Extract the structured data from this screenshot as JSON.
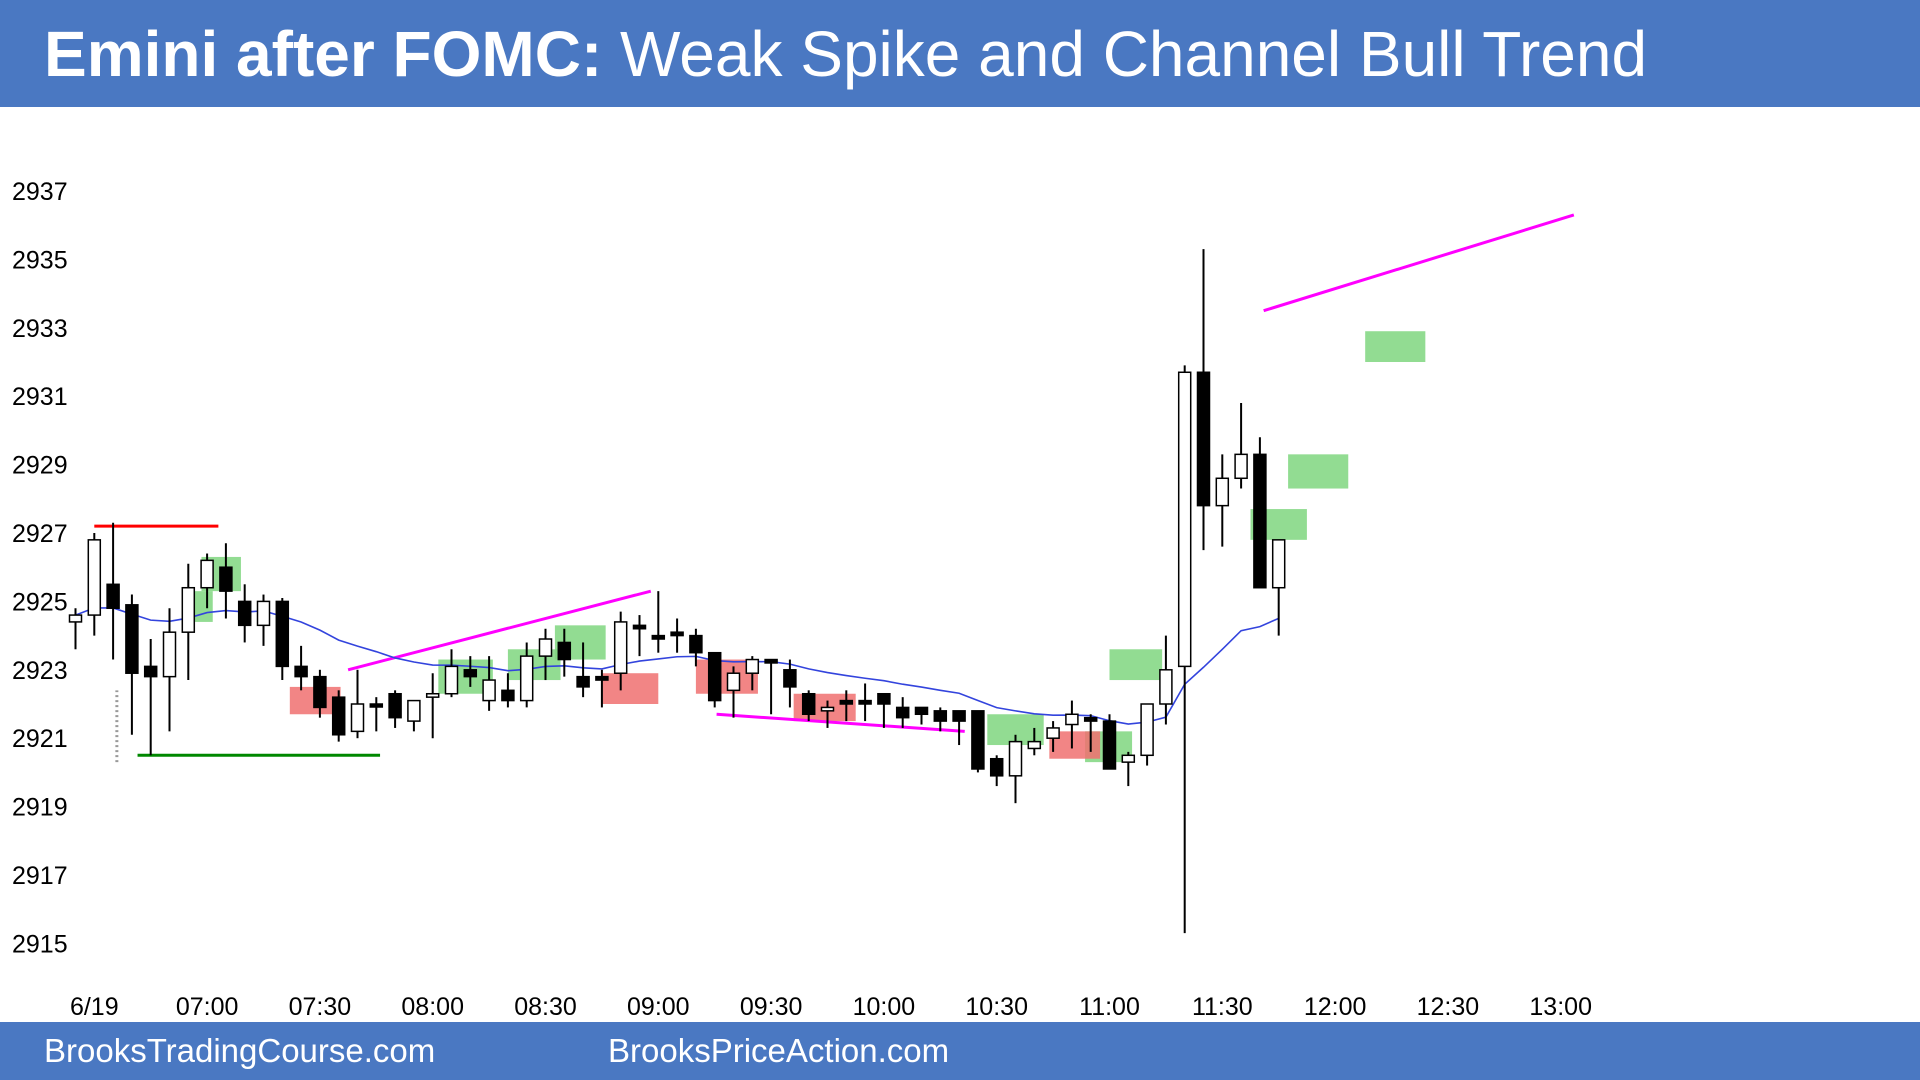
{
  "header": {
    "title_bold": "Emini after FOMC:",
    "title_rest": " Weak Spike and Channel Bull Trend"
  },
  "footer": {
    "left": "BrooksTradingCourse.com",
    "right": "BrooksPriceAction.com"
  },
  "colors": {
    "banner": "#4a78c2",
    "ema": "#3344dd",
    "trendline": "#ff00ff",
    "resistance": "#ff0000",
    "support": "#008800",
    "bull_box": "#7fd67f",
    "bear_box": "#f07070"
  },
  "chart_data": {
    "type": "candlestick",
    "title": "Emini after FOMC: Weak Spike and Channel Bull Trend",
    "ylim": [
      2914,
      2939
    ],
    "y_ticks": [
      2915,
      2917,
      2919,
      2921,
      2923,
      2925,
      2927,
      2929,
      2931,
      2933,
      2935,
      2937
    ],
    "x_ticks": [
      {
        "bar": 1,
        "label": "6/19"
      },
      {
        "bar": 7,
        "label": "07:00"
      },
      {
        "bar": 13,
        "label": "07:30"
      },
      {
        "bar": 19,
        "label": "08:00"
      },
      {
        "bar": 25,
        "label": "08:30"
      },
      {
        "bar": 31,
        "label": "09:00"
      },
      {
        "bar": 37,
        "label": "09:30"
      },
      {
        "bar": 43,
        "label": "10:00"
      },
      {
        "bar": 49,
        "label": "10:30"
      },
      {
        "bar": 55,
        "label": "11:00"
      },
      {
        "bar": 61,
        "label": "11:30"
      },
      {
        "bar": 67,
        "label": "12:00"
      },
      {
        "bar": 73,
        "label": "12:30"
      },
      {
        "bar": 79,
        "label": "13:00"
      }
    ],
    "bars": [
      [
        2924.4,
        2924.8,
        2923.6,
        2924.6
      ],
      [
        2924.6,
        2927.0,
        2924.0,
        2926.8
      ],
      [
        2925.5,
        2927.3,
        2923.3,
        2924.8
      ],
      [
        2924.9,
        2925.2,
        2921.1,
        2922.9
      ],
      [
        2923.1,
        2923.9,
        2920.5,
        2922.8
      ],
      [
        2922.8,
        2924.8,
        2921.2,
        2924.1
      ],
      [
        2924.1,
        2926.1,
        2922.7,
        2925.4
      ],
      [
        2925.4,
        2926.4,
        2924.8,
        2926.2
      ],
      [
        2926.0,
        2926.7,
        2924.5,
        2925.3
      ],
      [
        2925.0,
        2925.5,
        2923.8,
        2924.3
      ],
      [
        2924.3,
        2925.2,
        2923.7,
        2925.0
      ],
      [
        2925.0,
        2925.1,
        2922.7,
        2923.1
      ],
      [
        2923.1,
        2923.7,
        2922.4,
        2922.8
      ],
      [
        2922.8,
        2923.0,
        2921.6,
        2921.9
      ],
      [
        2922.2,
        2922.4,
        2920.9,
        2921.1
      ],
      [
        2921.2,
        2923.0,
        2921.0,
        2922.0
      ],
      [
        2922.0,
        2922.2,
        2921.2,
        2922.0
      ],
      [
        2922.3,
        2922.4,
        2921.3,
        2921.6
      ],
      [
        2921.5,
        2922.1,
        2921.2,
        2922.1
      ],
      [
        2922.2,
        2922.9,
        2921.0,
        2922.3
      ],
      [
        2922.3,
        2923.6,
        2922.2,
        2923.1
      ],
      [
        2923.0,
        2923.4,
        2922.5,
        2922.8
      ],
      [
        2922.1,
        2923.4,
        2921.8,
        2922.7
      ],
      [
        2922.4,
        2922.9,
        2921.9,
        2922.1
      ],
      [
        2922.1,
        2923.8,
        2921.9,
        2923.4
      ],
      [
        2923.4,
        2924.2,
        2922.7,
        2923.9
      ],
      [
        2923.8,
        2924.2,
        2922.8,
        2923.3
      ],
      [
        2922.8,
        2923.8,
        2922.2,
        2922.5
      ],
      [
        2922.8,
        2923.0,
        2921.9,
        2922.7
      ],
      [
        2922.9,
        2924.7,
        2922.4,
        2924.4
      ],
      [
        2924.3,
        2924.6,
        2923.4,
        2924.2
      ],
      [
        2924.0,
        2925.3,
        2923.5,
        2923.9
      ],
      [
        2924.1,
        2924.5,
        2923.5,
        2924.0
      ],
      [
        2924.0,
        2924.2,
        2923.1,
        2923.5
      ],
      [
        2923.5,
        2923.5,
        2921.9,
        2922.1
      ],
      [
        2922.4,
        2923.1,
        2921.6,
        2922.9
      ],
      [
        2922.9,
        2923.4,
        2922.4,
        2923.3
      ],
      [
        2923.3,
        2923.3,
        2921.7,
        2923.2
      ],
      [
        2923.0,
        2923.3,
        2921.9,
        2922.5
      ],
      [
        2922.3,
        2922.4,
        2921.5,
        2921.7
      ],
      [
        2921.8,
        2922.1,
        2921.3,
        2921.9
      ],
      [
        2922.1,
        2922.4,
        2921.5,
        2922.0
      ],
      [
        2922.1,
        2922.6,
        2921.5,
        2922.0
      ],
      [
        2922.3,
        2922.3,
        2921.3,
        2922.0
      ],
      [
        2921.9,
        2922.2,
        2921.3,
        2921.6
      ],
      [
        2921.9,
        2921.9,
        2921.4,
        2921.7
      ],
      [
        2921.8,
        2921.9,
        2921.2,
        2921.5
      ],
      [
        2921.8,
        2921.8,
        2920.8,
        2921.5
      ],
      [
        2921.8,
        2921.8,
        2920.0,
        2920.1
      ],
      [
        2920.4,
        2920.5,
        2919.6,
        2919.9
      ],
      [
        2919.9,
        2921.1,
        2919.1,
        2920.9
      ],
      [
        2920.7,
        2921.3,
        2920.5,
        2920.9
      ],
      [
        2921.0,
        2921.5,
        2920.6,
        2921.3
      ],
      [
        2921.4,
        2922.1,
        2920.7,
        2921.7
      ],
      [
        2921.6,
        2921.7,
        2920.6,
        2921.5
      ],
      [
        2921.5,
        2921.7,
        2920.1,
        2920.1
      ],
      [
        2920.3,
        2920.6,
        2919.6,
        2920.5
      ],
      [
        2920.5,
        2921.6,
        2920.2,
        2922.0
      ],
      [
        2922.0,
        2924.0,
        2921.4,
        2923.0
      ],
      [
        2923.1,
        2931.9,
        2915.3,
        2931.7
      ],
      [
        2931.7,
        2935.3,
        2926.5,
        2927.8
      ],
      [
        2927.8,
        2929.3,
        2926.6,
        2928.6
      ],
      [
        2928.6,
        2930.8,
        2928.3,
        2929.3
      ],
      [
        2929.3,
        2929.8,
        2926.9,
        2925.4
      ],
      [
        2925.4,
        2926.8,
        2924.0,
        2926.8
      ]
    ],
    "annotations": {
      "resistance_line": {
        "from_bar": 1,
        "to_bar": 7.6,
        "y": 2927.2
      },
      "support_line": {
        "from_bar": 3.3,
        "to_bar": 16.2,
        "y": 2920.5
      },
      "wedge_top_1": {
        "from": [
          14.5,
          2923.0
        ],
        "to": [
          30.6,
          2925.3
        ]
      },
      "wedge_bottom_2": {
        "from": [
          34.1,
          2921.7
        ],
        "to": [
          47.3,
          2921.2
        ]
      },
      "wedge_top_3": {
        "from": [
          63.2,
          2933.5
        ],
        "to": [
          79.7,
          2936.3
        ]
      },
      "bull_boxes": [
        [
          5.7,
          7.3,
          2924.4,
          2925.3
        ],
        [
          6.7,
          8.8,
          2925.3,
          2926.3
        ],
        [
          19.3,
          22.2,
          2922.3,
          2923.3
        ],
        [
          23,
          25.8,
          2922.7,
          2923.6
        ],
        [
          25.5,
          28.2,
          2923.3,
          2924.3
        ],
        [
          48.5,
          51.5,
          2920.8,
          2921.7
        ],
        [
          53.7,
          56.2,
          2920.3,
          2921.2
        ],
        [
          55,
          57.8,
          2922.7,
          2923.6
        ],
        [
          62.5,
          65.5,
          2926.8,
          2927.7
        ],
        [
          64.5,
          67.7,
          2928.3,
          2929.3
        ],
        [
          68.6,
          71.8,
          2932.0,
          2932.9
        ]
      ],
      "bear_boxes": [
        [
          11.4,
          14.1,
          2921.7,
          2922.5
        ],
        [
          28,
          31,
          2922.0,
          2922.9
        ],
        [
          33,
          36.3,
          2922.3,
          2923.3
        ],
        [
          38.2,
          41.5,
          2921.5,
          2922.3
        ],
        [
          51.8,
          54.5,
          2920.4,
          2921.2
        ]
      ],
      "dotted_marker": {
        "bar": 2.2,
        "from": 2920.3,
        "to": 2922.4
      }
    }
  }
}
